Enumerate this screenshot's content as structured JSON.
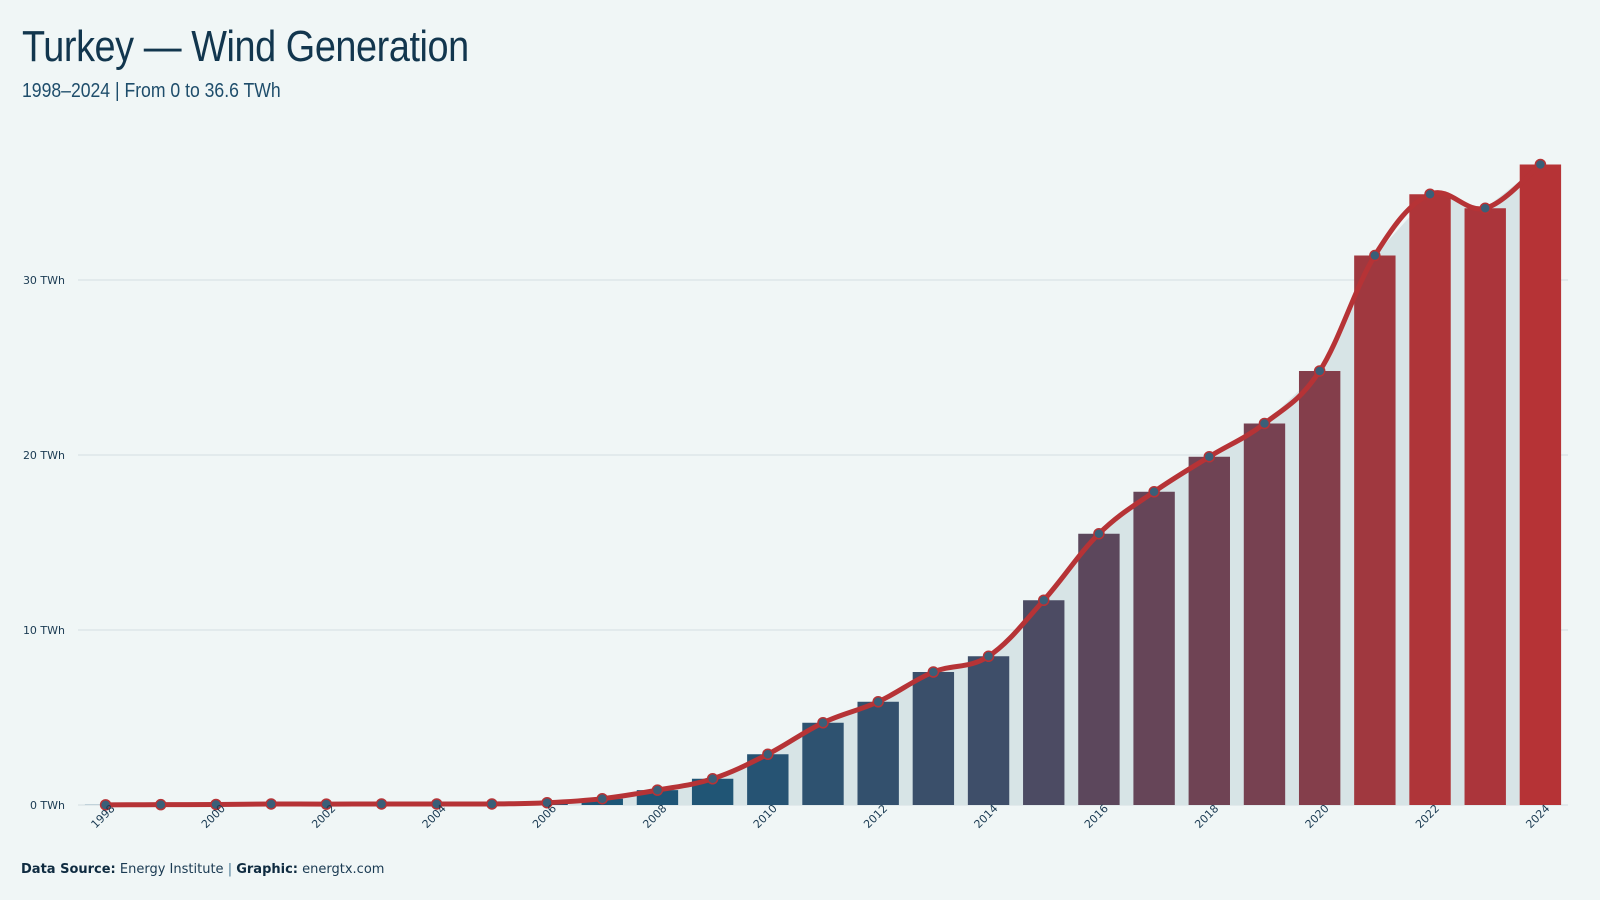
{
  "header": {
    "title": "Turkey — Wind Generation",
    "subtitle": "1998–2024 | From 0 to 36.6 TWh"
  },
  "footer": {
    "source_label": "Data Source:",
    "source_value": "Energy Institute",
    "separator": "|",
    "graphic_label": "Graphic:",
    "graphic_value": "energtx.com"
  },
  "colors": {
    "background": "#f0f6f6",
    "bar_start": "#1a5678",
    "bar_end": "#b63336",
    "line": "#b63336",
    "area": "#d7e4e6",
    "grid": "#d3dfe2",
    "marker_fill": "#3a5f78"
  },
  "chart_data": {
    "type": "bar",
    "title": "Turkey — Wind Generation",
    "subtitle": "1998–2024 | From 0 to 36.6 TWh",
    "xlabel": "",
    "ylabel": "",
    "unit": "TWh",
    "ylim": [
      0,
      38
    ],
    "yticks": [
      0,
      10,
      20,
      30
    ],
    "ytick_labels": [
      "0 TWh",
      "10 TWh",
      "20 TWh",
      "30 TWh"
    ],
    "xtick_labels": [
      "1998",
      "2000",
      "2002",
      "2004",
      "2006",
      "2008",
      "2010",
      "2012",
      "2014",
      "2016",
      "2018",
      "2020",
      "2022",
      "2024"
    ],
    "grid": true,
    "legend": "none",
    "categories": [
      1998,
      1999,
      2000,
      2001,
      2002,
      2003,
      2004,
      2005,
      2006,
      2007,
      2008,
      2009,
      2010,
      2011,
      2012,
      2013,
      2014,
      2015,
      2016,
      2017,
      2018,
      2019,
      2020,
      2021,
      2022,
      2023,
      2024
    ],
    "values": [
      0.01,
      0.02,
      0.03,
      0.06,
      0.05,
      0.06,
      0.06,
      0.06,
      0.13,
      0.36,
      0.85,
      1.5,
      2.9,
      4.7,
      5.9,
      7.6,
      8.5,
      11.7,
      15.5,
      17.9,
      19.9,
      21.8,
      24.8,
      31.4,
      34.9,
      34.1,
      36.6
    ]
  }
}
